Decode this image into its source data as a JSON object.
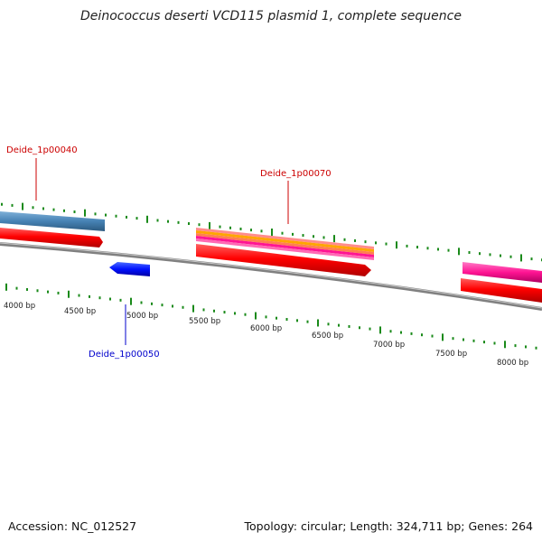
{
  "title": "Deinococcus deserti VCD115 plasmid 1, complete sequence",
  "footer": {
    "accession": "Accession: NC_012527",
    "stats": "Topology: circular; Length: 324,711 bp; Genes: 264"
  },
  "scale_labels": [
    "4000 bp",
    "4500 bp",
    "5000 bp",
    "5500 bp",
    "6000 bp",
    "6500 bp",
    "7000 bp",
    "7500 bp",
    "8000 bp"
  ],
  "gene_labels": [
    {
      "text": "Deide_1p00040",
      "color": "#cc0000"
    },
    {
      "text": "Deide_1p00070",
      "color": "#cc0000"
    },
    {
      "text": "Deide_1p00050",
      "color": "#0000cc"
    }
  ],
  "colors": {
    "backbone": "#808080",
    "tick": "#1a8a1a",
    "forward_cds": "#ff0000",
    "reverse_gene": "#0000ff",
    "steelblue_feature": "#4682b4",
    "magenta_feature": "#ff1493"
  }
}
